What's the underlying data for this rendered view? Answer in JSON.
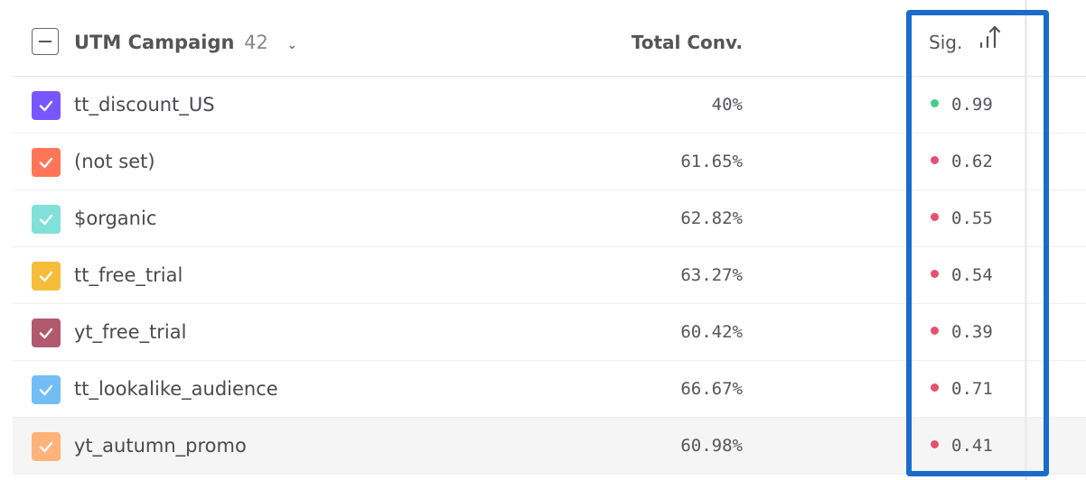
{
  "header": {
    "column_label": "UTM Campaign",
    "count": "42",
    "total_conv_label": "Total Conv.",
    "sig_label": "Sig."
  },
  "colors": {
    "positive": "#3ecf84",
    "negative": "#e6506f",
    "highlight": "#1a6ccc"
  },
  "rows": [
    {
      "name": "tt_discount_US",
      "conv": "40%",
      "sig": "0.99",
      "color": "#7856ff",
      "status": "positive"
    },
    {
      "name": "(not set)",
      "conv": "61.65%",
      "sig": "0.62",
      "color": "#ff7557",
      "status": "negative"
    },
    {
      "name": "$organic",
      "conv": "62.82%",
      "sig": "0.55",
      "color": "#80e1d9",
      "status": "negative"
    },
    {
      "name": "tt_free_trial",
      "conv": "63.27%",
      "sig": "0.54",
      "color": "#f8bc3b",
      "status": "negative"
    },
    {
      "name": "yt_free_trial",
      "conv": "60.42%",
      "sig": "0.39",
      "color": "#b2596e",
      "status": "negative"
    },
    {
      "name": "tt_lookalike_audience",
      "conv": "66.67%",
      "sig": "0.71",
      "color": "#72bef4",
      "status": "negative"
    },
    {
      "name": "yt_autumn_promo",
      "conv": "60.98%",
      "sig": "0.41",
      "color": "#ffb27a",
      "status": "negative"
    }
  ]
}
